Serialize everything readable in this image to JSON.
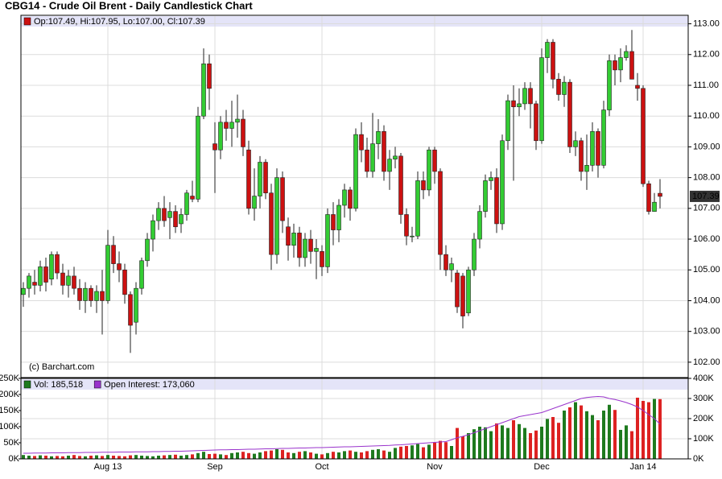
{
  "chart_data": [
    {
      "type": "candlestick",
      "title": "CBG14 - Crude Oil Brent - Daily Candlestick Chart",
      "legend_text": "Op:107.49, Hi:107.95, Lo:107.00, Cl:107.39",
      "annotation": "(c) Barchart.com",
      "last_label": "107.39",
      "categories": [
        null,
        null,
        null,
        null,
        null,
        null,
        null,
        null,
        null,
        null,
        null,
        null,
        null,
        null,
        null,
        "Aug 13",
        null,
        null,
        null,
        null,
        null,
        null,
        null,
        null,
        null,
        null,
        null,
        null,
        null,
        null,
        null,
        null,
        null,
        null,
        "Sep",
        null,
        null,
        null,
        null,
        null,
        null,
        null,
        null,
        null,
        null,
        null,
        null,
        null,
        null,
        null,
        null,
        null,
        null,
        "Oct",
        null,
        null,
        null,
        null,
        null,
        null,
        null,
        null,
        null,
        null,
        null,
        null,
        null,
        null,
        null,
        null,
        null,
        null,
        null,
        "Nov",
        null,
        null,
        null,
        null,
        null,
        null,
        null,
        null,
        null,
        null,
        null,
        null,
        null,
        null,
        null,
        null,
        null,
        null,
        "Dec",
        null,
        null,
        null,
        null,
        null,
        null,
        null,
        null,
        null,
        null,
        null,
        null,
        null,
        null,
        null,
        null,
        null,
        "Jan 14",
        null,
        null,
        null
      ],
      "open": [
        104.2,
        104.4,
        104.6,
        104.5,
        105.1,
        104.7,
        105.5,
        104.9,
        104.5,
        104.8,
        104.4,
        104.0,
        104.4,
        104.0,
        104.3,
        104.0,
        105.8,
        105.2,
        105.0,
        104.2,
        103.3,
        104.4,
        105.3,
        106.0,
        106.6,
        107.0,
        106.7,
        106.9,
        106.5,
        106.8,
        107.4,
        107.3,
        110.0,
        111.7,
        109.1,
        108.9,
        109.8,
        109.6,
        109.8,
        109.9,
        108.9,
        107.0,
        107.4,
        108.5,
        107.5,
        105.5,
        108.0,
        106.4,
        105.8,
        106.2,
        105.4,
        106.0,
        105.6,
        105.6,
        105.1,
        106.8,
        106.3,
        107.1,
        107.6,
        107.0,
        109.4,
        108.9,
        108.2,
        109.1,
        109.5,
        108.2,
        108.6,
        108.7,
        106.8,
        106.1,
        106.1,
        107.9,
        107.6,
        108.9,
        108.2,
        105.5,
        105.0,
        104.9,
        104.8,
        103.6,
        105.0,
        106.0,
        106.9,
        107.9,
        108.0,
        106.5,
        109.2,
        110.5,
        110.3,
        110.4,
        110.9,
        110.4,
        109.2,
        111.9,
        112.4,
        111.2,
        110.7,
        111.1,
        109.0,
        109.2,
        108.2,
        108.4,
        109.5,
        108.4,
        110.2,
        111.8,
        111.5,
        111.9,
        112.1,
        111.0,
        110.9,
        107.8,
        106.9,
        107.49
      ],
      "high": [
        104.6,
        104.9,
        105.0,
        105.3,
        105.4,
        105.6,
        105.6,
        105.2,
        105.0,
        105.1,
        104.7,
        104.6,
        104.5,
        104.5,
        105.0,
        106.3,
        106.1,
        105.6,
        105.2,
        104.3,
        104.6,
        105.4,
        106.2,
        106.8,
        107.2,
        107.4,
        107.2,
        107.1,
        107.0,
        107.6,
        107.9,
        110.3,
        112.2,
        112.0,
        109.8,
        110.0,
        110.2,
        110.5,
        110.7,
        110.2,
        109.2,
        108.3,
        108.7,
        108.6,
        107.8,
        108.3,
        108.2,
        106.7,
        106.5,
        106.4,
        106.2,
        106.3,
        106.0,
        105.8,
        107.0,
        107.2,
        107.3,
        107.8,
        107.7,
        109.6,
        109.8,
        109.3,
        110.1,
        109.9,
        109.7,
        108.9,
        109.0,
        108.8,
        107.0,
        106.4,
        108.2,
        108.2,
        109.0,
        109.0,
        108.3,
        105.8,
        105.4,
        105.0,
        104.9,
        105.1,
        106.2,
        107.1,
        108.1,
        108.2,
        108.3,
        109.4,
        110.7,
        111.0,
        110.9,
        111.1,
        111.1,
        110.5,
        112.2,
        112.5,
        112.5,
        111.4,
        111.3,
        111.2,
        109.5,
        109.3,
        109.4,
        109.8,
        109.6,
        110.5,
        112.0,
        112.0,
        112.2,
        112.3,
        112.8,
        111.4,
        111.0,
        107.9,
        107.5,
        107.95
      ],
      "low": [
        103.8,
        104.1,
        104.2,
        104.3,
        104.3,
        104.5,
        104.7,
        104.2,
        104.1,
        104.2,
        103.7,
        103.6,
        103.8,
        103.6,
        102.9,
        103.9,
        104.9,
        104.6,
        103.9,
        102.3,
        102.9,
        104.2,
        105.1,
        105.6,
        106.3,
        106.4,
        106.0,
        106.2,
        106.2,
        106.6,
        107.2,
        107.2,
        109.9,
        110.2,
        107.5,
        108.6,
        109.2,
        109.0,
        109.3,
        108.7,
        106.8,
        106.6,
        107.0,
        107.3,
        105.0,
        105.2,
        106.2,
        105.3,
        105.4,
        105.1,
        105.1,
        105.2,
        104.7,
        104.8,
        104.9,
        105.8,
        105.9,
        106.7,
        106.6,
        106.9,
        108.5,
        108.0,
        108.0,
        108.6,
        107.9,
        107.6,
        108.3,
        106.5,
        105.8,
        105.9,
        106.0,
        107.3,
        107.4,
        107.8,
        105.0,
        104.8,
        104.6,
        103.6,
        103.1,
        103.5,
        104.8,
        105.7,
        106.7,
        107.6,
        106.2,
        106.3,
        108.9,
        107.9,
        110.0,
        110.2,
        109.6,
        108.9,
        109.1,
        111.4,
        110.9,
        110.5,
        110.3,
        108.8,
        108.7,
        107.9,
        107.6,
        108.2,
        108.0,
        108.3,
        110.0,
        111.0,
        111.1,
        111.8,
        111.2,
        110.5,
        107.7,
        106.8,
        106.9,
        107.0
      ],
      "close": [
        104.4,
        104.8,
        104.5,
        105.1,
        104.6,
        105.5,
        104.9,
        104.5,
        104.8,
        104.4,
        104.0,
        104.4,
        104.0,
        104.3,
        104.0,
        105.8,
        105.2,
        105.0,
        104.2,
        103.2,
        104.4,
        105.3,
        106.0,
        106.6,
        107.0,
        106.6,
        106.9,
        106.4,
        106.8,
        107.5,
        107.3,
        110.0,
        111.7,
        110.9,
        108.9,
        109.8,
        109.6,
        109.8,
        109.9,
        109.0,
        107.0,
        107.4,
        108.5,
        107.5,
        105.5,
        108.0,
        106.6,
        105.8,
        106.2,
        105.4,
        106.0,
        105.6,
        105.7,
        105.1,
        106.8,
        106.3,
        107.1,
        107.6,
        107.0,
        109.4,
        108.9,
        108.2,
        109.1,
        109.5,
        108.2,
        108.6,
        108.7,
        106.8,
        106.1,
        106.1,
        107.9,
        107.6,
        108.9,
        108.2,
        105.5,
        105.0,
        105.2,
        103.8,
        103.5,
        105.0,
        106.0,
        106.9,
        107.9,
        108.0,
        106.5,
        109.2,
        110.5,
        110.3,
        110.4,
        110.9,
        110.4,
        109.2,
        111.9,
        112.4,
        111.2,
        110.7,
        111.1,
        109.0,
        109.2,
        108.2,
        108.4,
        109.5,
        108.4,
        110.2,
        111.8,
        111.5,
        111.9,
        112.1,
        111.2,
        110.9,
        107.8,
        106.9,
        107.2,
        107.39
      ],
      "up_color": "#33cc33",
      "down_color": "#cc1111",
      "ylim": [
        101.5,
        113.25
      ],
      "yticks": [
        {
          "value": 102,
          "label": "102.00"
        },
        {
          "value": 103,
          "label": "103.00"
        },
        {
          "value": 104,
          "label": "104.00"
        },
        {
          "value": 105,
          "label": "105.00"
        },
        {
          "value": 106,
          "label": "106.00"
        },
        {
          "value": 107,
          "label": "107.00"
        },
        {
          "value": 108,
          "label": "108.00"
        },
        {
          "value": 109,
          "label": "109.00"
        },
        {
          "value": 110,
          "label": "110.00"
        },
        {
          "value": 111,
          "label": "111.00"
        },
        {
          "value": 112,
          "label": "112.00"
        },
        {
          "value": 113,
          "label": "113.00"
        }
      ],
      "grid": true
    },
    {
      "type": "volume",
      "series": [
        {
          "name": "Vol: 185,518",
          "color": "#1e7a1e",
          "down_color": "#dd2222",
          "values": [
            12,
            10,
            9,
            11,
            10,
            8,
            9,
            8,
            10,
            12,
            9,
            8,
            10,
            11,
            9,
            12,
            10,
            9,
            8,
            11,
            12,
            10,
            9,
            8,
            10,
            11,
            12,
            13,
            10,
            12,
            14,
            18,
            22,
            15,
            16,
            14,
            12,
            18,
            20,
            22,
            18,
            16,
            20,
            24,
            26,
            30,
            28,
            20,
            18,
            22,
            24,
            20,
            16,
            14,
            18,
            22,
            20,
            24,
            26,
            22,
            20,
            24,
            28,
            30,
            26,
            22,
            34,
            38,
            40,
            42,
            46,
            36,
            44,
            50,
            56,
            52,
            40,
            96,
            70,
            80,
            92,
            100,
            98,
            86,
            110,
            104,
            96,
            120,
            108,
            96,
            80,
            88,
            100,
            124,
            130,
            112,
            150,
            160,
            176,
            166,
            148,
            136,
            120,
            150,
            168,
            152,
            90,
            104,
            86,
            190,
            180,
            176,
            186,
            185.518
          ]
        },
        {
          "name": "Open Interest: 173,060",
          "color": "#9933cc",
          "axis": "y2",
          "values": [
            28,
            28,
            29,
            29,
            29,
            30,
            30,
            30,
            31,
            31,
            31,
            32,
            32,
            32,
            33,
            33,
            33,
            34,
            34,
            34,
            35,
            35,
            35,
            36,
            36,
            37,
            37,
            38,
            38,
            39,
            40,
            41,
            42,
            43,
            44,
            45,
            45,
            46,
            46,
            47,
            48,
            48,
            49,
            50,
            50,
            51,
            52,
            52,
            53,
            54,
            54,
            55,
            56,
            56,
            57,
            58,
            59,
            60,
            60,
            61,
            62,
            63,
            64,
            65,
            66,
            67,
            69,
            70,
            72,
            74,
            76,
            78,
            80,
            82,
            84,
            86,
            95,
            105,
            112,
            120,
            130,
            140,
            150,
            160,
            170,
            180,
            190,
            200,
            210,
            215,
            220,
            225,
            230,
            240,
            250,
            260,
            270,
            280,
            290,
            300,
            305,
            308,
            310,
            308,
            300,
            295,
            288,
            280,
            270,
            258,
            240,
            220,
            200,
            173.06
          ]
        }
      ],
      "ylim": [
        0,
        250
      ],
      "yticks": [
        {
          "value": 0,
          "label": "0K"
        },
        {
          "value": 50,
          "label": "50K"
        },
        {
          "value": 100,
          "label": "100K"
        },
        {
          "value": 150,
          "label": "150K"
        },
        {
          "value": 200,
          "label": "200K"
        },
        {
          "value": 250,
          "label": "250K"
        }
      ],
      "y2lim": [
        0,
        400
      ],
      "y2ticks": [
        {
          "value": 0,
          "label": "0K"
        },
        {
          "value": 100,
          "label": "100K"
        },
        {
          "value": 200,
          "label": "200K"
        },
        {
          "value": 300,
          "label": "300K"
        },
        {
          "value": 400,
          "label": "400K"
        }
      ],
      "grid": true
    }
  ]
}
